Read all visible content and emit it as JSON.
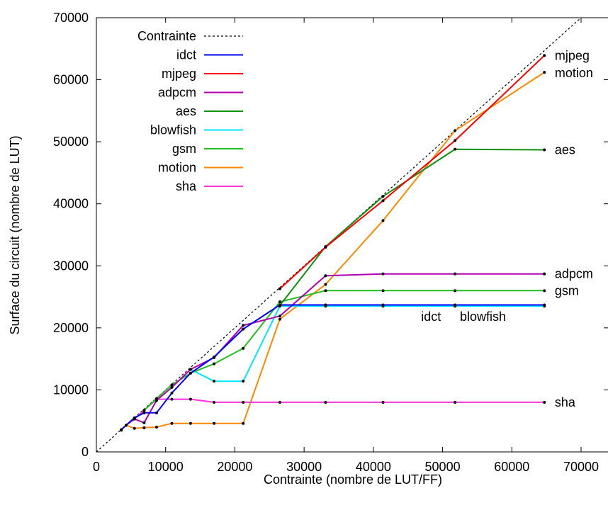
{
  "chart_data": {
    "type": "line",
    "title": "",
    "xlabel": "Contrainte (nombre de LUT/FF)",
    "ylabel": "Surface du circuit (nombre de LUT)",
    "xlim": [
      0,
      70000
    ],
    "ylim": [
      0,
      70000
    ],
    "xticks": [
      0,
      10000,
      20000,
      30000,
      40000,
      50000,
      60000,
      70000
    ],
    "yticks": [
      0,
      10000,
      20000,
      30000,
      40000,
      50000,
      60000,
      70000
    ],
    "xtick_labels": [
      "0",
      "10000",
      "20000",
      "30000",
      "40000",
      "50000",
      "60000",
      "70000"
    ],
    "ytick_labels": [
      "0",
      "10000",
      "20000",
      "30000",
      "40000",
      "50000",
      "60000",
      "70000"
    ],
    "grid": false,
    "legend_position": "top-left",
    "constraint": {
      "name": "Contrainte",
      "color": "#000000",
      "x": [
        0,
        70000
      ],
      "y": [
        0,
        70000
      ]
    },
    "series": [
      {
        "name": "idct",
        "color": "#0000ff",
        "x": [
          3600,
          4300,
          5500,
          6900,
          8700,
          10900,
          13600,
          17000,
          21200,
          26500,
          33100,
          41400,
          51800,
          64700
        ],
        "y": [
          3600,
          4300,
          5500,
          6300,
          6300,
          9500,
          12700,
          15300,
          19800,
          23700,
          23700,
          23700,
          23700,
          23700
        ]
      },
      {
        "name": "mjpeg",
        "color": "#ff0000",
        "x": [
          26500,
          33100,
          41400,
          51800,
          64700
        ],
        "y": [
          26300,
          33000,
          40500,
          50200,
          63900
        ]
      },
      {
        "name": "adpcm",
        "color": "#b000b0",
        "x": [
          4300,
          5500,
          6900,
          8700,
          10900,
          13600,
          17000,
          21200,
          26500,
          33100,
          41400,
          51800,
          64700
        ],
        "y": [
          4300,
          5300,
          4700,
          8300,
          10400,
          13300,
          15200,
          20400,
          21900,
          28400,
          28700,
          28700,
          28700
        ]
      },
      {
        "name": "aes",
        "color": "#109010",
        "x": [
          26500,
          33100,
          41400,
          51800,
          64700
        ],
        "y": [
          23600,
          33100,
          41200,
          48800,
          48700
        ]
      },
      {
        "name": "blowfish",
        "color": "#00e5ff",
        "x": [
          13600,
          17000,
          21200,
          26500,
          33100,
          41400,
          51800,
          64700
        ],
        "y": [
          13300,
          11400,
          11400,
          23500,
          23500,
          23500,
          23500,
          23500
        ]
      },
      {
        "name": "gsm",
        "color": "#20c020",
        "x": [
          6900,
          8700,
          10900,
          13600,
          17000,
          21200,
          26500,
          33100,
          41400,
          51800,
          64700
        ],
        "y": [
          6700,
          8600,
          10800,
          12700,
          14200,
          16700,
          24200,
          26000,
          26000,
          26000,
          26000
        ]
      },
      {
        "name": "motion",
        "color": "#ff8800",
        "x": [
          3600,
          4300,
          5500,
          6900,
          8700,
          10900,
          13600,
          17000,
          21200,
          26500,
          33100,
          41400,
          51800,
          64700
        ],
        "y": [
          3500,
          4300,
          3800,
          3900,
          4000,
          4600,
          4600,
          4600,
          4600,
          21400,
          27000,
          37300,
          51800,
          61200
        ]
      },
      {
        "name": "sha",
        "color": "#ff33dd",
        "x": [
          5500,
          6900,
          8700,
          10900,
          13600,
          17000,
          21200,
          26500,
          33100,
          41400,
          51800,
          64700
        ],
        "y": [
          5300,
          6700,
          8500,
          8500,
          8500,
          8000,
          8000,
          8000,
          8000,
          8000,
          8000,
          8000
        ]
      }
    ],
    "annotations": [
      {
        "text": "mjpeg",
        "x": 66200,
        "y": 63900
      },
      {
        "text": "motion",
        "x": 66200,
        "y": 61100
      },
      {
        "text": "aes",
        "x": 66200,
        "y": 48700
      },
      {
        "text": "adpcm",
        "x": 66200,
        "y": 28700
      },
      {
        "text": "gsm",
        "x": 66200,
        "y": 26000
      },
      {
        "text": "idct",
        "x": 46900,
        "y": 21800
      },
      {
        "text": "blowfish",
        "x": 52500,
        "y": 21800
      },
      {
        "text": "sha",
        "x": 66200,
        "y": 8000
      }
    ]
  }
}
